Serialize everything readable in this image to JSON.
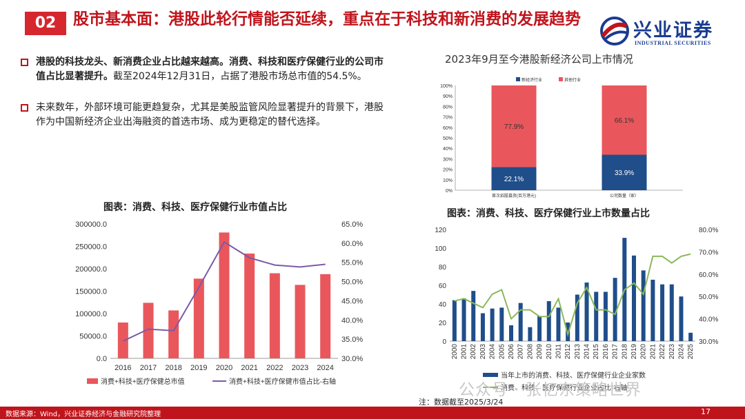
{
  "header": {
    "badge": "02",
    "title": "股市基本面：港股此轮行情能否延续，重点在于科技和新消费的发展趋势"
  },
  "logo": {
    "cn": "兴业证券",
    "en": "INDUSTRIAL SECURITIES"
  },
  "bullets": [
    {
      "bold": "港股的科技龙头、新消费企业占比越来越高。消费、科技和医疗保健行业的公司市值占比显著提升。",
      "rest": "截至2024年12月31日，占据了港股市场总市值的54.5%。"
    },
    {
      "bold": "",
      "rest": "未来数年，外部环境可能更趋复杂，尤其是美股监管风险显著提升的背景下，港股作为中国新经济企业出海融资的首选市场、成为更稳定的替代选择。"
    }
  ],
  "captions": {
    "c1": "2023年9月至今港股新经济公司上市情况",
    "c2": "图表：消费、科技、医疗保健行业市值占比",
    "c3": "图表：消费、科技、医疗保健行业上市数量占比"
  },
  "footer": {
    "source": "数据来源：Wind，兴业证券经济与金融研究院整理",
    "page": "17",
    "note": "注：数据截至2025/3/24",
    "watermark": "公众号 · 张忆东策略世界"
  },
  "colors": {
    "red": "#e9575c",
    "blue": "#1f4e8a",
    "purple": "#7a5aa8",
    "green": "#8bb85a",
    "brand": "#c0141c"
  },
  "chart_data": [
    {
      "type": "bar",
      "stacked": true,
      "title": "2023年9月至今港股新经济公司上市情况",
      "categories": [
        "首次招股募资(百万港元)",
        "公司数量（家）"
      ],
      "series": [
        {
          "name": "新经济行业",
          "values": [
            22.1,
            33.9
          ]
        },
        {
          "name": "其他行业",
          "values": [
            77.9,
            66.1
          ]
        }
      ],
      "ylim": [
        0,
        100
      ],
      "yticks": [
        "0%",
        "10%",
        "20%",
        "30%",
        "40%",
        "50%",
        "60%",
        "70%",
        "80%",
        "90%",
        "100%"
      ],
      "data_labels": [
        [
          "22.1%",
          "77.9%"
        ],
        [
          "33.9%",
          "66.1%"
        ]
      ],
      "legend": "top"
    },
    {
      "type": "bar",
      "title": "图表：消费、科技、医疗保健行业市值占比",
      "categories": [
        "2016",
        "2017",
        "2018",
        "2019",
        "2020",
        "2021",
        "2022",
        "2023",
        "2024"
      ],
      "series": [
        {
          "name": "消费+科技+医疗保健总市值",
          "type": "bar",
          "values": [
            80000,
            124000,
            107000,
            178000,
            281000,
            234000,
            190000,
            164000,
            188000
          ]
        },
        {
          "name": "消费+科技+医疗保健市值占比-右轴",
          "type": "line",
          "values": [
            34.5,
            37.6,
            37.2,
            48.5,
            60.3,
            56.2,
            54.3,
            53.8,
            54.5
          ]
        }
      ],
      "ylim": [
        0,
        300000
      ],
      "yticks": [
        "0.0",
        "50000.0",
        "100000.0",
        "150000.0",
        "200000.0",
        "250000.0",
        "300000.0"
      ],
      "y2lim": [
        30,
        65
      ],
      "y2ticks": [
        "30.0%",
        "35.0%",
        "40.0%",
        "45.0%",
        "50.0%",
        "55.0%",
        "60.0%",
        "65.0%"
      ],
      "legend": "bottom"
    },
    {
      "type": "bar",
      "title": "图表：消费、科技、医疗保健行业上市数量占比",
      "categories": [
        "2000",
        "2001",
        "2002",
        "2003",
        "2004",
        "2005",
        "2006",
        "2007",
        "2008",
        "2009",
        "2010",
        "2011",
        "2012",
        "2013",
        "2014",
        "2015",
        "2016",
        "2017",
        "2018",
        "2019",
        "2020",
        "2021",
        "2022",
        "2023",
        "2024",
        "2025"
      ],
      "series": [
        {
          "name": "当年上市的消费、科技、医疗保健行业企业家数",
          "type": "bar",
          "values": [
            44,
            46,
            54,
            30,
            35,
            36,
            17,
            41,
            15,
            27,
            43,
            36,
            20,
            50,
            63,
            53,
            53,
            68,
            111,
            92,
            76,
            66,
            61,
            61,
            48,
            9
          ]
        },
        {
          "name": "消费、科技、医疗保健行业企业占比-右轴",
          "type": "line",
          "values": [
            48,
            49,
            47,
            45,
            51,
            53,
            40,
            44,
            44,
            41,
            41,
            49,
            33,
            47,
            54,
            44,
            44,
            42,
            53,
            56,
            51,
            68,
            68,
            65,
            68,
            69
          ]
        }
      ],
      "ylim": [
        0,
        120
      ],
      "yticks": [
        "0",
        "20",
        "40",
        "60",
        "80",
        "100",
        "120"
      ],
      "y2lim": [
        30,
        80
      ],
      "y2ticks": [
        "30.0%",
        "40.0%",
        "50.0%",
        "60.0%",
        "70.0%",
        "80.0%"
      ],
      "legend": "bottom"
    }
  ]
}
